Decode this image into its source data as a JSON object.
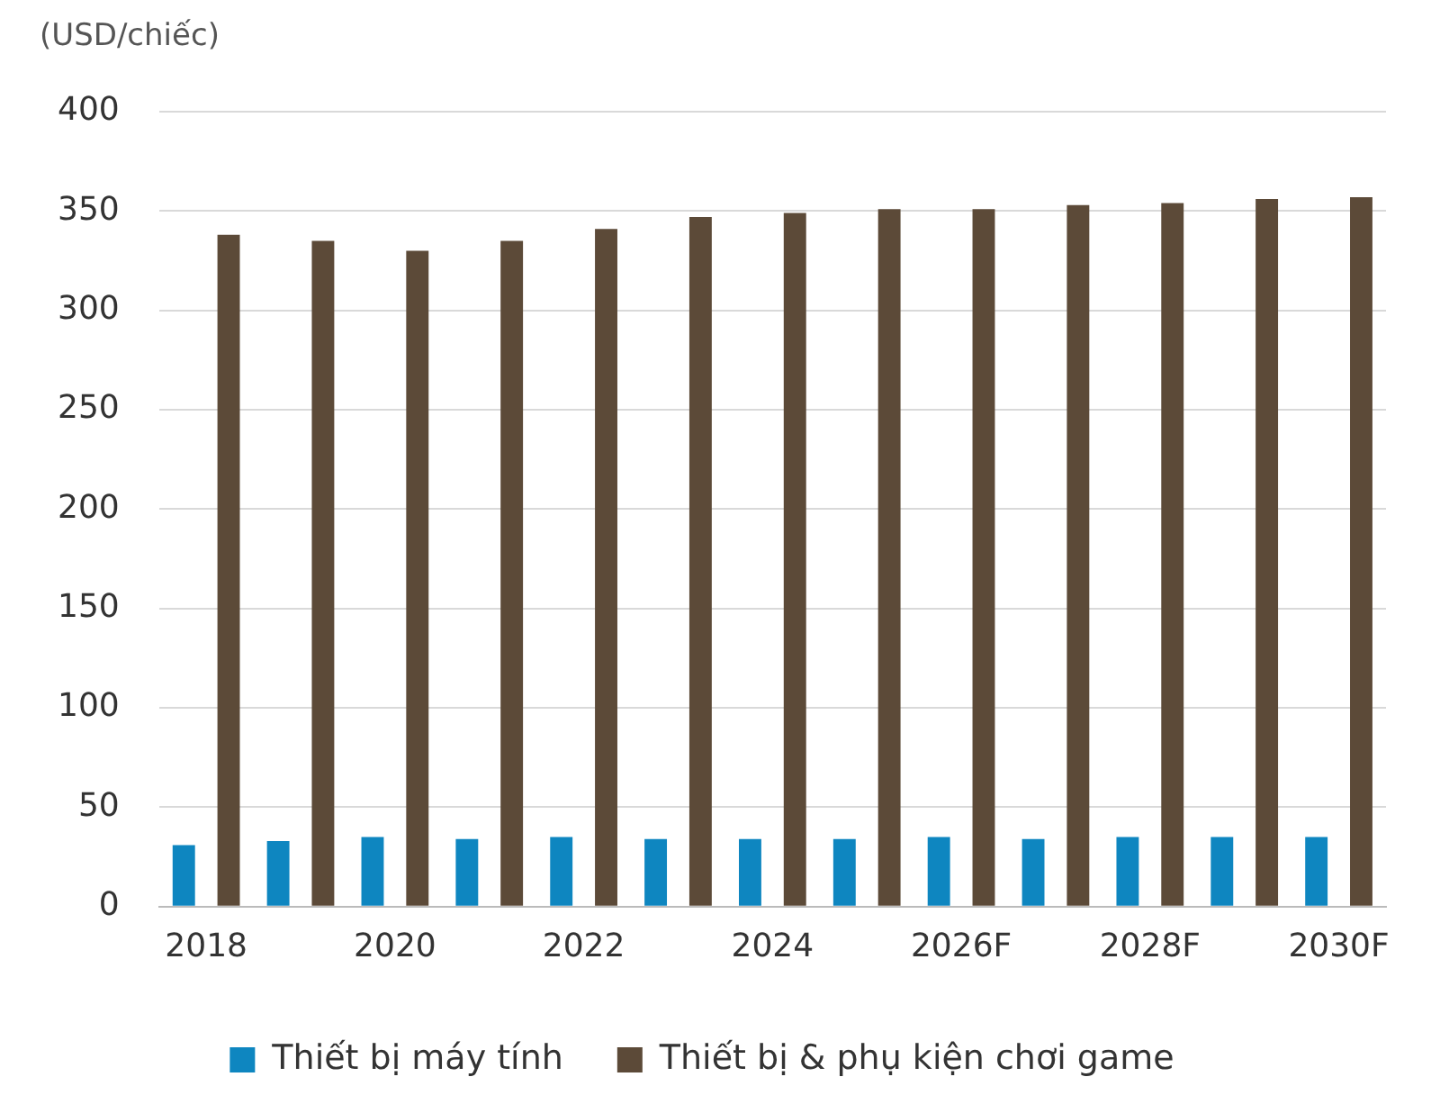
{
  "chart_data": {
    "type": "bar",
    "ylabel": "(USD/chiếc)",
    "categories": [
      "2018",
      null,
      "2020",
      null,
      "2022",
      null,
      "2024",
      null,
      "2026F",
      null,
      "2028F",
      null,
      "2030F"
    ],
    "series": [
      {
        "name": "Thiết bị máy tính",
        "color": "#0e86c0",
        "values": [
          31,
          33,
          35,
          34,
          35,
          34,
          34,
          34,
          35,
          34,
          35,
          35,
          35
        ]
      },
      {
        "name": "Thiết bị & phụ kiện chơi game",
        "color": "#5c4a38",
        "values": [
          338,
          335,
          330,
          335,
          341,
          347,
          349,
          351,
          351,
          353,
          354,
          356,
          357
        ]
      }
    ],
    "ylim": [
      0,
      400
    ],
    "yticks": [
      0,
      50,
      100,
      150,
      200,
      250,
      300,
      350,
      400
    ],
    "grid": "y",
    "legend": "bottom"
  }
}
